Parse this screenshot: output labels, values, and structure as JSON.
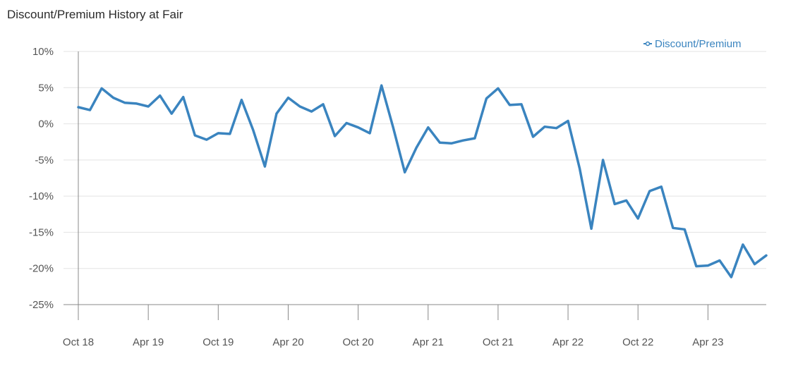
{
  "chart_data": {
    "type": "line",
    "title": "Discount/Premium History at Fair",
    "xlabel": "",
    "ylabel": "",
    "ylim": [
      -25,
      10
    ],
    "y_ticks": [
      10,
      5,
      0,
      -5,
      -10,
      -15,
      -20,
      -25
    ],
    "y_tick_labels": [
      "10%",
      "5%",
      "0%",
      "-5%",
      "-10%",
      "-15%",
      "-20%",
      "-25%"
    ],
    "x_tick_labels": [
      "Oct 18",
      "Apr 19",
      "Oct 19",
      "Apr 20",
      "Oct 20",
      "Apr 21",
      "Oct 21",
      "Apr 22",
      "Oct 22",
      "Apr 23"
    ],
    "x_tick_months": [
      "2018-10",
      "2019-04",
      "2019-10",
      "2020-04",
      "2020-10",
      "2021-04",
      "2021-10",
      "2022-04",
      "2022-10",
      "2023-04"
    ],
    "x_range": [
      "2018-10",
      "2023-09"
    ],
    "grid": "horizontal",
    "legend_position": "top-right",
    "colors": {
      "line": "#3a84bf",
      "grid": "#e3e3e3",
      "axis": "#888888",
      "title": "#2b2b2b"
    },
    "series": [
      {
        "name": "Discount/Premium",
        "x": [
          "2018-10",
          "2018-11",
          "2018-12",
          "2019-01",
          "2019-02",
          "2019-03",
          "2019-04",
          "2019-05",
          "2019-06",
          "2019-07",
          "2019-08",
          "2019-09",
          "2019-10",
          "2019-11",
          "2019-12",
          "2020-01",
          "2020-02",
          "2020-03",
          "2020-04",
          "2020-05",
          "2020-06",
          "2020-07",
          "2020-08",
          "2020-09",
          "2020-10",
          "2020-11",
          "2020-12",
          "2021-01",
          "2021-02",
          "2021-03",
          "2021-04",
          "2021-05",
          "2021-06",
          "2021-07",
          "2021-08",
          "2021-09",
          "2021-10",
          "2021-11",
          "2021-12",
          "2022-01",
          "2022-02",
          "2022-03",
          "2022-04",
          "2022-05",
          "2022-06",
          "2022-07",
          "2022-08",
          "2022-09",
          "2022-10",
          "2022-11",
          "2022-12",
          "2023-01",
          "2023-02",
          "2023-03",
          "2023-04",
          "2023-05",
          "2023-06",
          "2023-07",
          "2023-08",
          "2023-09"
        ],
        "values": [
          2.3,
          1.9,
          4.9,
          3.6,
          2.9,
          2.8,
          2.4,
          3.9,
          1.4,
          3.7,
          -1.6,
          -2.2,
          -1.3,
          -1.4,
          3.3,
          -0.9,
          -5.9,
          1.4,
          3.6,
          2.4,
          1.7,
          2.7,
          -1.7,
          0.1,
          -0.5,
          -1.3,
          5.3,
          -0.5,
          -6.7,
          -3.3,
          -0.5,
          -2.6,
          -2.7,
          -2.3,
          -2.0,
          3.5,
          4.9,
          2.6,
          2.7,
          -1.8,
          -0.4,
          -0.6,
          0.4,
          -6.2,
          -14.5,
          -5.0,
          -11.1,
          -10.6,
          -13.1,
          -9.3,
          -8.7,
          -14.4,
          -14.6,
          -19.7,
          -19.6,
          -18.9,
          -21.2,
          -16.7,
          -19.4,
          -18.2
        ]
      }
    ]
  }
}
